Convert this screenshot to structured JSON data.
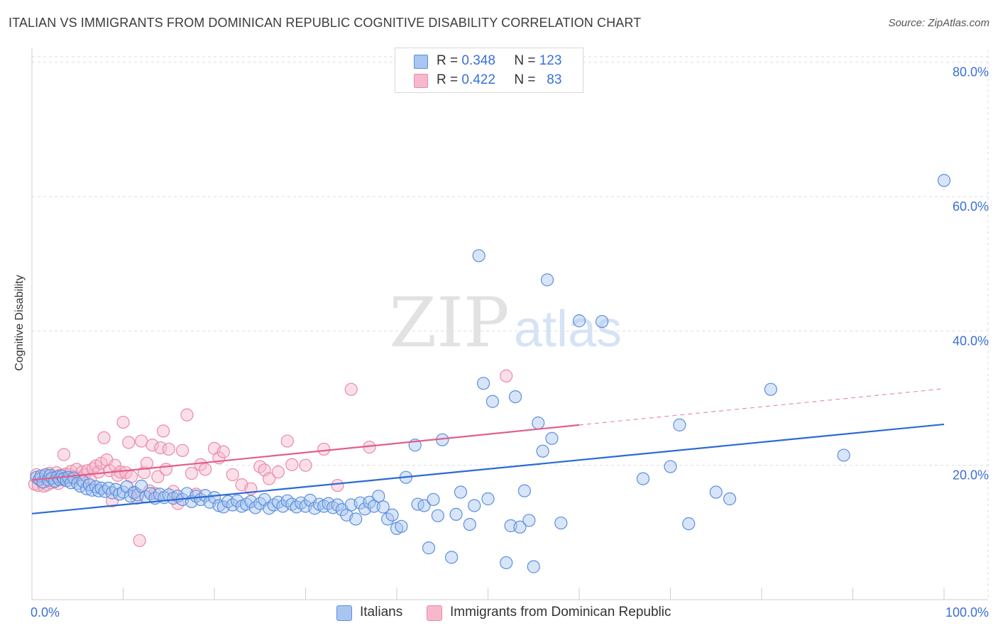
{
  "title": "ITALIAN VS IMMIGRANTS FROM DOMINICAN REPUBLIC COGNITIVE DISABILITY CORRELATION CHART",
  "source": "Source: ZipAtlas.com",
  "watermark": {
    "part1": "ZIP",
    "part2": "atlas"
  },
  "legend": {
    "italians": {
      "r_label": "R =",
      "r_value": "0.348",
      "n_label": "N =",
      "n_value": "123"
    },
    "dominican": {
      "r_label": "R =",
      "r_value": "0.422",
      "n_label": "N =",
      "n_value": "83"
    }
  },
  "bottom_legend": {
    "italians": "Italians",
    "dominican": "Immigrants from Dominican Republic"
  },
  "colors": {
    "blue_fill": "#a9c6f0",
    "blue_stroke": "#5b8fdd",
    "blue_line": "#2a6ad6",
    "pink_fill": "#f6b9cb",
    "pink_stroke": "#e98aa7",
    "pink_line": "#e05d8c",
    "grid": "#dedede",
    "axis_text": "#3a6fd8"
  },
  "chart_data": {
    "type": "scatter",
    "title": "ITALIAN VS IMMIGRANTS FROM DOMINICAN REPUBLIC COGNITIVE DISABILITY CORRELATION CHART",
    "xlabel": "",
    "ylabel": "Cognitive Disability",
    "xlim": [
      0,
      100
    ],
    "ylim": [
      0,
      80
    ],
    "x_tick_labels": [
      "0.0%",
      "100.0%"
    ],
    "y_tick_labels": [
      "20.0%",
      "40.0%",
      "60.0%",
      "80.0%"
    ],
    "y_ticks": [
      20,
      40,
      60,
      80
    ],
    "grid": true,
    "legend_placement": "top-center",
    "series": [
      {
        "name": "Italians",
        "r": 0.348,
        "n": 123,
        "trend": {
          "x0": 0,
          "y0": 12.8,
          "x1": 100,
          "y1": 26.1
        },
        "points": [
          [
            0.5,
            18.2
          ],
          [
            0.8,
            17.9
          ],
          [
            1.0,
            18.4
          ],
          [
            1.2,
            17.5
          ],
          [
            1.5,
            18.6
          ],
          [
            1.8,
            17.8
          ],
          [
            2.0,
            18.5
          ],
          [
            2.2,
            18.1
          ],
          [
            2.5,
            17.6
          ],
          [
            2.8,
            18.3
          ],
          [
            3.0,
            17.9
          ],
          [
            3.3,
            18.4
          ],
          [
            3.5,
            18.0
          ],
          [
            3.8,
            17.7
          ],
          [
            4.0,
            18.2
          ],
          [
            4.3,
            17.4
          ],
          [
            4.6,
            18.1
          ],
          [
            5.0,
            17.3
          ],
          [
            5.3,
            16.9
          ],
          [
            5.6,
            17.6
          ],
          [
            6.0,
            16.5
          ],
          [
            6.3,
            17.1
          ],
          [
            6.6,
            16.3
          ],
          [
            7.0,
            16.8
          ],
          [
            7.3,
            16.2
          ],
          [
            7.6,
            16.6
          ],
          [
            8.0,
            16.1
          ],
          [
            8.4,
            16.6
          ],
          [
            8.8,
            15.9
          ],
          [
            9.2,
            16.4
          ],
          [
            9.6,
            15.7
          ],
          [
            10.0,
            16.0
          ],
          [
            10.4,
            16.8
          ],
          [
            10.8,
            15.4
          ],
          [
            11.2,
            15.9
          ],
          [
            11.6,
            15.6
          ],
          [
            12.0,
            16.9
          ],
          [
            12.5,
            15.3
          ],
          [
            13.0,
            15.8
          ],
          [
            13.5,
            15.1
          ],
          [
            14.0,
            15.7
          ],
          [
            14.5,
            15.2
          ],
          [
            15.0,
            15.6
          ],
          [
            15.5,
            15.1
          ],
          [
            16.0,
            15.4
          ],
          [
            16.5,
            14.9
          ],
          [
            17.0,
            15.8
          ],
          [
            17.5,
            14.6
          ],
          [
            18.0,
            15.4
          ],
          [
            18.5,
            14.9
          ],
          [
            19.0,
            15.5
          ],
          [
            19.5,
            14.5
          ],
          [
            20.0,
            15.2
          ],
          [
            20.5,
            14.0
          ],
          [
            21.0,
            13.8
          ],
          [
            21.5,
            14.6
          ],
          [
            22.0,
            14.1
          ],
          [
            22.5,
            14.7
          ],
          [
            23.0,
            13.9
          ],
          [
            23.5,
            14.2
          ],
          [
            24.0,
            14.6
          ],
          [
            24.5,
            13.7
          ],
          [
            25.0,
            14.3
          ],
          [
            25.5,
            14.9
          ],
          [
            26.0,
            13.6
          ],
          [
            26.5,
            14.1
          ],
          [
            27.0,
            14.5
          ],
          [
            27.5,
            13.9
          ],
          [
            28.0,
            14.7
          ],
          [
            28.5,
            14.2
          ],
          [
            29.0,
            13.8
          ],
          [
            29.5,
            14.4
          ],
          [
            30.0,
            13.9
          ],
          [
            30.5,
            14.8
          ],
          [
            31.0,
            13.6
          ],
          [
            31.5,
            14.2
          ],
          [
            32.0,
            13.9
          ],
          [
            32.5,
            14.3
          ],
          [
            33.0,
            13.7
          ],
          [
            33.5,
            14.1
          ],
          [
            34.0,
            13.4
          ],
          [
            34.5,
            12.6
          ],
          [
            35.0,
            14.1
          ],
          [
            35.5,
            12.0
          ],
          [
            36.0,
            14.4
          ],
          [
            36.5,
            13.5
          ],
          [
            37.0,
            14.5
          ],
          [
            37.5,
            13.9
          ],
          [
            38.0,
            15.4
          ],
          [
            38.5,
            13.8
          ],
          [
            39.0,
            12.0
          ],
          [
            39.5,
            12.6
          ],
          [
            40.0,
            10.6
          ],
          [
            40.5,
            10.9
          ],
          [
            41.0,
            18.2
          ],
          [
            42.0,
            23.0
          ],
          [
            42.3,
            14.2
          ],
          [
            43.0,
            14.0
          ],
          [
            43.5,
            7.7
          ],
          [
            44.0,
            14.9
          ],
          [
            44.5,
            12.5
          ],
          [
            45.0,
            23.8
          ],
          [
            46.0,
            6.3
          ],
          [
            46.5,
            12.7
          ],
          [
            47.0,
            16.0
          ],
          [
            48.0,
            11.2
          ],
          [
            48.5,
            14.0
          ],
          [
            49.0,
            51.2
          ],
          [
            49.5,
            32.2
          ],
          [
            50.0,
            15.0
          ],
          [
            50.5,
            29.5
          ],
          [
            52.0,
            5.5
          ],
          [
            52.5,
            11.0
          ],
          [
            53.0,
            30.2
          ],
          [
            53.5,
            10.8
          ],
          [
            54.0,
            16.2
          ],
          [
            54.5,
            11.8
          ],
          [
            55.0,
            4.9
          ],
          [
            55.5,
            26.3
          ],
          [
            56.0,
            22.1
          ],
          [
            56.5,
            47.6
          ],
          [
            57.0,
            24.0
          ],
          [
            58.0,
            11.4
          ],
          [
            60.0,
            41.5
          ],
          [
            62.5,
            41.4
          ],
          [
            67.0,
            18.0
          ],
          [
            70.0,
            19.8
          ],
          [
            71.0,
            26.0
          ],
          [
            72.0,
            11.3
          ],
          [
            75.0,
            16.0
          ],
          [
            76.5,
            15.0
          ],
          [
            81.0,
            31.3
          ],
          [
            89.0,
            21.5
          ],
          [
            100.0,
            62.4
          ]
        ]
      },
      {
        "name": "Immigrants from Dominican Republic",
        "r": 0.422,
        "n": 83,
        "trend": {
          "x0": 0,
          "y0": 17.8,
          "x1": 60,
          "y1": 26.0
        },
        "trend_dashed_to": {
          "x": 100,
          "y": 31.4
        },
        "points": [
          [
            0.3,
            17.2
          ],
          [
            0.5,
            18.6
          ],
          [
            0.7,
            17.0
          ],
          [
            0.9,
            18.0
          ],
          [
            1.1,
            17.5
          ],
          [
            1.3,
            16.9
          ],
          [
            1.5,
            18.4
          ],
          [
            1.7,
            17.1
          ],
          [
            1.9,
            18.8
          ],
          [
            2.1,
            17.4
          ],
          [
            2.3,
            18.2
          ],
          [
            2.5,
            17.7
          ],
          [
            2.7,
            18.9
          ],
          [
            2.9,
            17.3
          ],
          [
            3.1,
            18.5
          ],
          [
            3.3,
            17.9
          ],
          [
            3.5,
            21.6
          ],
          [
            3.7,
            18.7
          ],
          [
            3.9,
            17.8
          ],
          [
            4.1,
            18.6
          ],
          [
            4.3,
            19.1
          ],
          [
            4.6,
            18.3
          ],
          [
            4.9,
            19.4
          ],
          [
            5.2,
            18.1
          ],
          [
            5.5,
            19.0
          ],
          [
            5.8,
            18.6
          ],
          [
            6.1,
            19.2
          ],
          [
            6.4,
            17.9
          ],
          [
            6.7,
            19.5
          ],
          [
            7.0,
            19.9
          ],
          [
            7.3,
            19.0
          ],
          [
            7.6,
            20.3
          ],
          [
            7.9,
            24.1
          ],
          [
            8.2,
            20.8
          ],
          [
            8.5,
            19.2
          ],
          [
            8.8,
            14.7
          ],
          [
            9.1,
            20.0
          ],
          [
            9.4,
            18.5
          ],
          [
            9.7,
            19.0
          ],
          [
            10.0,
            26.4
          ],
          [
            10.3,
            18.9
          ],
          [
            10.6,
            23.4
          ],
          [
            10.9,
            18.3
          ],
          [
            11.2,
            16.0
          ],
          [
            11.5,
            15.1
          ],
          [
            11.8,
            8.8
          ],
          [
            12.0,
            23.6
          ],
          [
            12.3,
            18.9
          ],
          [
            12.6,
            20.3
          ],
          [
            12.9,
            16.2
          ],
          [
            13.2,
            23.0
          ],
          [
            13.5,
            15.8
          ],
          [
            13.8,
            18.3
          ],
          [
            14.1,
            22.6
          ],
          [
            14.4,
            25.1
          ],
          [
            14.7,
            19.4
          ],
          [
            15.0,
            22.4
          ],
          [
            15.5,
            16.1
          ],
          [
            16.0,
            14.3
          ],
          [
            16.5,
            22.2
          ],
          [
            17.0,
            27.5
          ],
          [
            17.5,
            18.8
          ],
          [
            18.0,
            15.7
          ],
          [
            18.5,
            20.1
          ],
          [
            19.0,
            19.4
          ],
          [
            20.0,
            22.5
          ],
          [
            20.5,
            21.1
          ],
          [
            21.0,
            22.0
          ],
          [
            22.0,
            18.6
          ],
          [
            23.0,
            17.1
          ],
          [
            24.0,
            16.5
          ],
          [
            25.0,
            19.8
          ],
          [
            25.5,
            19.3
          ],
          [
            26.0,
            18.0
          ],
          [
            27.0,
            19.0
          ],
          [
            28.0,
            23.6
          ],
          [
            28.5,
            20.1
          ],
          [
            30.0,
            20.0
          ],
          [
            32.0,
            22.4
          ],
          [
            33.5,
            17.0
          ],
          [
            35.0,
            31.3
          ],
          [
            37.0,
            22.7
          ],
          [
            52.0,
            33.3
          ]
        ]
      }
    ]
  }
}
